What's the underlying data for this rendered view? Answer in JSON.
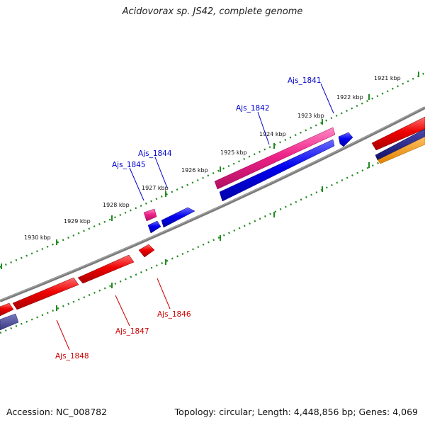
{
  "title": "Acidovorax sp. JS42, complete genome",
  "footer": {
    "accession": "Accession: NC_008782",
    "summary": "Topology: circular; Length: 4,448,856 bp; Genes: 4,069"
  },
  "colors": {
    "backbone": "#7a7a7a",
    "ruler": "#228b22",
    "forward_label": "#0000cc",
    "reverse_label": "#cc0000",
    "blue": "#0000ee",
    "red": "#ee0000",
    "pink": "#ee2288",
    "navy": "#1a1a80",
    "orange": "#ff9900",
    "slate": "#4a4a9a"
  },
  "ruler_labels": [
    "1921 kbp",
    "1922 kbp",
    "1923 kbp",
    "1924 kbp",
    "1925 kbp",
    "1926 kbp",
    "1927 kbp",
    "1928 kbp",
    "1929 kbp",
    "1930 kbp"
  ],
  "gene_labels": [
    {
      "name": "Ajs_1841",
      "strand": "forward"
    },
    {
      "name": "Ajs_1842",
      "strand": "forward"
    },
    {
      "name": "Ajs_1844",
      "strand": "forward"
    },
    {
      "name": "Ajs_1845",
      "strand": "forward"
    },
    {
      "name": "Ajs_1846",
      "strand": "reverse"
    },
    {
      "name": "Ajs_1847",
      "strand": "reverse"
    },
    {
      "name": "Ajs_1848",
      "strand": "reverse"
    }
  ]
}
